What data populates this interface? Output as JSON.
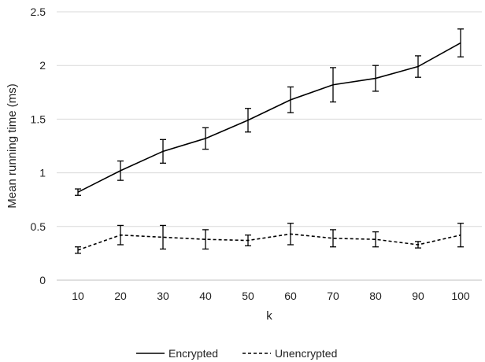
{
  "chart_data": {
    "type": "line",
    "title": "",
    "xlabel": "k",
    "ylabel": "Mean running time (ms)",
    "categories": [
      "10",
      "20",
      "30",
      "40",
      "50",
      "60",
      "70",
      "80",
      "90",
      "100"
    ],
    "ylim": [
      0,
      2.5
    ],
    "yticks": [
      "0",
      "0.5",
      "1",
      "1.5",
      "2",
      "2.5"
    ],
    "grid": "horizontal",
    "legend_position": "bottom",
    "series": [
      {
        "name": "Encrypted",
        "style": "solid",
        "color": "#000000",
        "values": [
          0.82,
          1.02,
          1.2,
          1.32,
          1.49,
          1.68,
          1.82,
          1.88,
          1.99,
          2.21
        ],
        "error": [
          0.03,
          0.09,
          0.11,
          0.1,
          0.11,
          0.12,
          0.16,
          0.12,
          0.1,
          0.13
        ]
      },
      {
        "name": "Unencrypted",
        "style": "dashed",
        "color": "#000000",
        "values": [
          0.28,
          0.42,
          0.4,
          0.38,
          0.37,
          0.43,
          0.39,
          0.38,
          0.33,
          0.42
        ],
        "error": [
          0.03,
          0.09,
          0.11,
          0.09,
          0.05,
          0.1,
          0.08,
          0.07,
          0.03,
          0.11
        ]
      }
    ]
  }
}
